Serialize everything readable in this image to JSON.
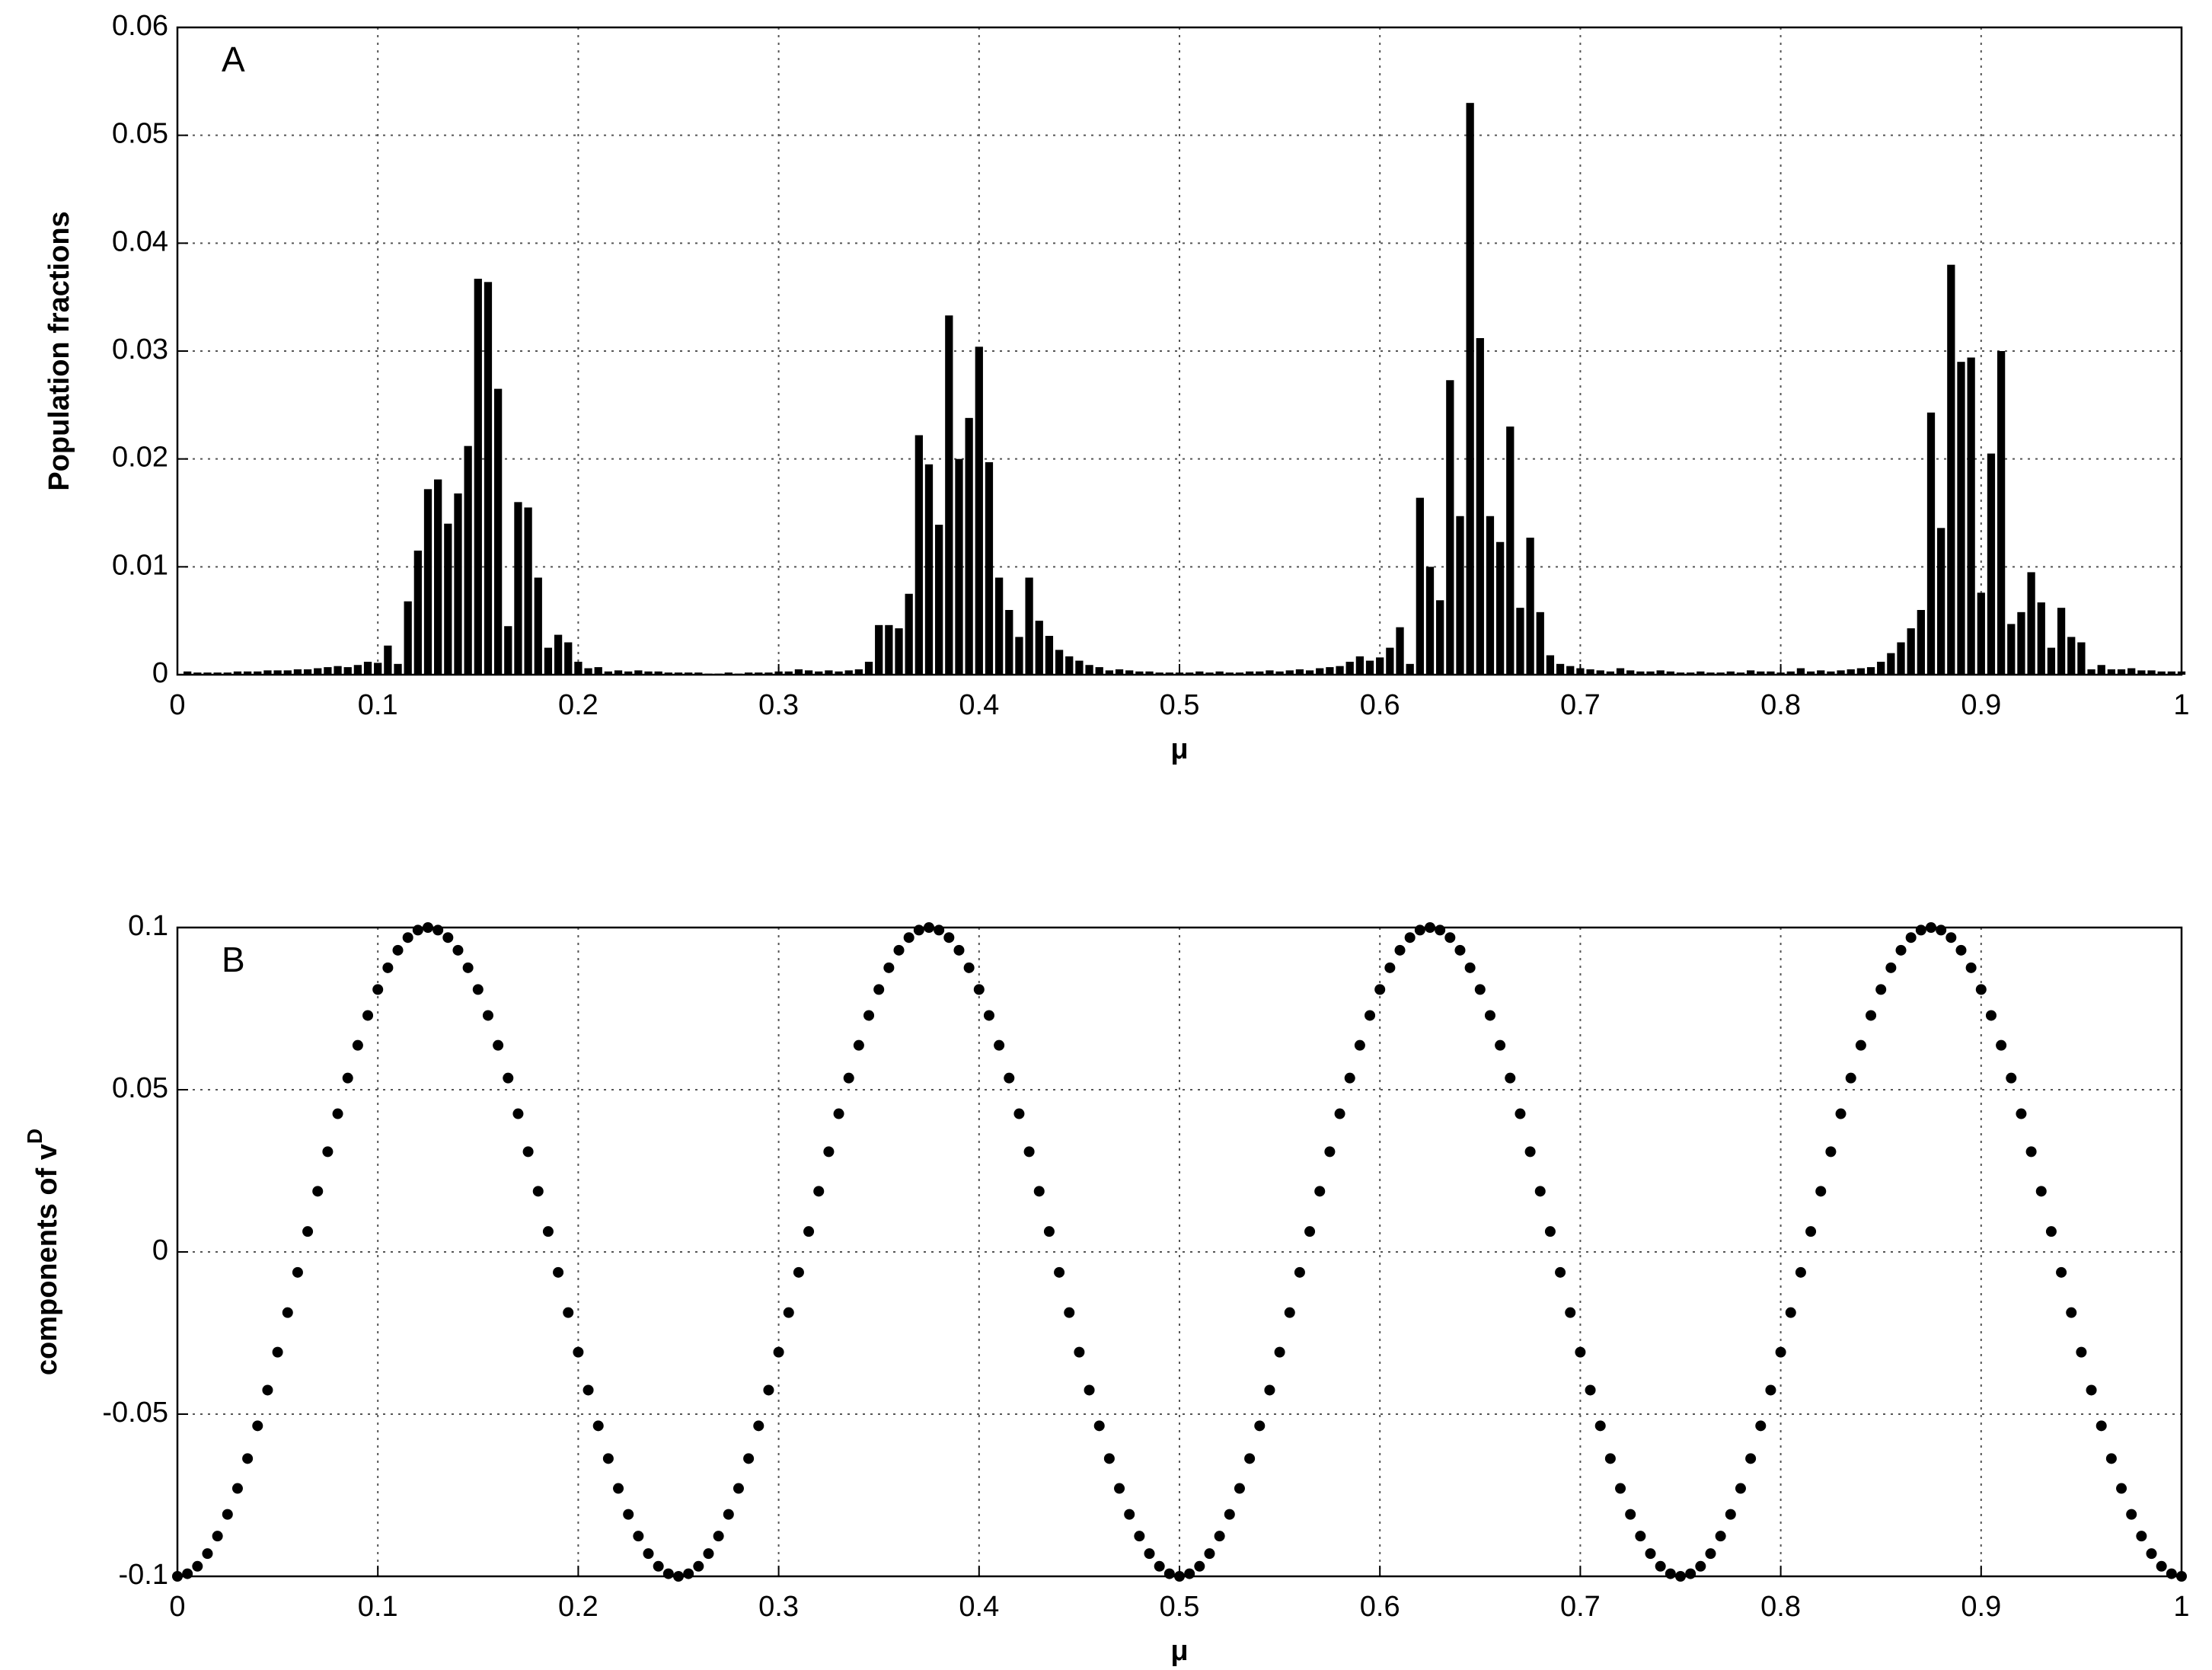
{
  "chart_data": [
    {
      "type": "bar",
      "panel_label": "A",
      "ylabel": "Population fractions",
      "xlabel": "μ",
      "color": "#000000",
      "grid": true,
      "xlim": [
        0,
        1
      ],
      "xticks": [
        0,
        0.1,
        0.2,
        0.3,
        0.4,
        0.5,
        0.6,
        0.7,
        0.8,
        0.9,
        1
      ],
      "ylim": [
        0,
        0.06
      ],
      "yticks": [
        0,
        0.01,
        0.02,
        0.03,
        0.04,
        0.05,
        0.06
      ],
      "x": [
        0.005,
        0.01,
        0.015,
        0.02,
        0.025,
        0.03,
        0.035,
        0.04,
        0.045,
        0.05,
        0.055,
        0.06,
        0.065,
        0.07,
        0.075,
        0.08,
        0.085,
        0.09,
        0.095,
        0.1,
        0.105,
        0.11,
        0.115,
        0.12,
        0.125,
        0.13,
        0.135,
        0.14,
        0.145,
        0.15,
        0.155,
        0.16,
        0.165,
        0.17,
        0.175,
        0.18,
        0.185,
        0.19,
        0.195,
        0.2,
        0.205,
        0.21,
        0.215,
        0.22,
        0.225,
        0.23,
        0.235,
        0.24,
        0.245,
        0.25,
        0.255,
        0.26,
        0.265,
        0.27,
        0.275,
        0.28,
        0.285,
        0.29,
        0.295,
        0.3,
        0.305,
        0.31,
        0.315,
        0.32,
        0.325,
        0.33,
        0.335,
        0.34,
        0.345,
        0.35,
        0.355,
        0.36,
        0.365,
        0.37,
        0.375,
        0.38,
        0.385,
        0.39,
        0.395,
        0.4,
        0.405,
        0.41,
        0.415,
        0.42,
        0.425,
        0.43,
        0.435,
        0.44,
        0.445,
        0.45,
        0.455,
        0.46,
        0.465,
        0.47,
        0.475,
        0.48,
        0.485,
        0.49,
        0.495,
        0.5,
        0.505,
        0.51,
        0.515,
        0.52,
        0.525,
        0.53,
        0.535,
        0.54,
        0.545,
        0.55,
        0.555,
        0.56,
        0.565,
        0.57,
        0.575,
        0.58,
        0.585,
        0.59,
        0.595,
        0.6,
        0.605,
        0.61,
        0.615,
        0.62,
        0.625,
        0.63,
        0.635,
        0.64,
        0.645,
        0.65,
        0.655,
        0.66,
        0.665,
        0.67,
        0.675,
        0.68,
        0.685,
        0.69,
        0.695,
        0.7,
        0.705,
        0.71,
        0.715,
        0.72,
        0.725,
        0.73,
        0.735,
        0.74,
        0.745,
        0.75,
        0.755,
        0.76,
        0.765,
        0.77,
        0.775,
        0.78,
        0.785,
        0.79,
        0.795,
        0.8,
        0.805,
        0.81,
        0.815,
        0.82,
        0.825,
        0.83,
        0.835,
        0.84,
        0.845,
        0.85,
        0.855,
        0.86,
        0.865,
        0.87,
        0.875,
        0.88,
        0.885,
        0.89,
        0.895,
        0.9,
        0.905,
        0.91,
        0.915,
        0.92,
        0.925,
        0.93,
        0.935,
        0.94,
        0.945,
        0.95,
        0.955,
        0.96,
        0.965,
        0.97,
        0.975,
        0.98,
        0.985,
        0.99,
        0.995,
        1
      ],
      "values": [
        0.0003,
        0.0002,
        0.0002,
        0.0002,
        0.0002,
        0.0003,
        0.0003,
        0.0003,
        0.0004,
        0.0004,
        0.0004,
        0.0005,
        0.0005,
        0.0006,
        0.0007,
        0.0008,
        0.0007,
        0.0009,
        0.0012,
        0.0011,
        0.0027,
        0.001,
        0.0068,
        0.0115,
        0.0172,
        0.0181,
        0.014,
        0.0168,
        0.0212,
        0.0367,
        0.0364,
        0.0265,
        0.0045,
        0.016,
        0.0155,
        0.009,
        0.0025,
        0.0037,
        0.003,
        0.0012,
        0.0006,
        0.0007,
        0.0003,
        0.0004,
        0.0003,
        0.0004,
        0.0003,
        0.0003,
        0.0002,
        0.0002,
        0.0002,
        0.0002,
        0.0001,
        0.0001,
        0.0002,
        0.0001,
        0.0002,
        0.0002,
        0.0002,
        0.0003,
        0.0003,
        0.0005,
        0.0004,
        0.0003,
        0.0004,
        0.0003,
        0.0004,
        0.0005,
        0.0012,
        0.0046,
        0.0046,
        0.0043,
        0.0075,
        0.0222,
        0.0195,
        0.0139,
        0.0333,
        0.02,
        0.0238,
        0.0304,
        0.0197,
        0.009,
        0.006,
        0.0035,
        0.009,
        0.005,
        0.0036,
        0.0023,
        0.0017,
        0.0013,
        0.0009,
        0.0007,
        0.0004,
        0.0005,
        0.0004,
        0.0003,
        0.0003,
        0.0002,
        0.0002,
        0.0002,
        0.0002,
        0.0003,
        0.0002,
        0.0003,
        0.0002,
        0.0002,
        0.0003,
        0.0003,
        0.0004,
        0.0003,
        0.0004,
        0.0005,
        0.0004,
        0.0006,
        0.0007,
        0.0008,
        0.0012,
        0.0017,
        0.0013,
        0.0016,
        0.0025,
        0.0044,
        0.001,
        0.0164,
        0.01,
        0.0069,
        0.0273,
        0.0147,
        0.053,
        0.0312,
        0.0147,
        0.0123,
        0.023,
        0.0062,
        0.0127,
        0.0058,
        0.0018,
        0.001,
        0.0008,
        0.0006,
        0.0005,
        0.0004,
        0.0003,
        0.0006,
        0.0004,
        0.0003,
        0.0003,
        0.0004,
        0.0003,
        0.0002,
        0.0002,
        0.0003,
        0.0002,
        0.0002,
        0.0003,
        0.0002,
        0.0004,
        0.0003,
        0.0003,
        0.0002,
        0.0003,
        0.0006,
        0.0003,
        0.0004,
        0.0003,
        0.0004,
        0.0005,
        0.0006,
        0.0007,
        0.0012,
        0.002,
        0.003,
        0.0043,
        0.006,
        0.0243,
        0.0136,
        0.038,
        0.029,
        0.0294,
        0.0076,
        0.0205,
        0.03,
        0.0047,
        0.0058,
        0.0095,
        0.0067,
        0.0025,
        0.0062,
        0.0035,
        0.003,
        0.0005,
        0.0009,
        0.0005,
        0.0005,
        0.0006,
        0.0004,
        0.0004,
        0.0003,
        0.0003,
        0.0003
      ]
    },
    {
      "type": "scatter",
      "panel_label": "B",
      "ylabel": "components of v",
      "ylabel_superscript": "D",
      "xlabel": "μ",
      "color": "#000000",
      "grid": true,
      "xlim": [
        0,
        1
      ],
      "xticks": [
        0,
        0.1,
        0.2,
        0.3,
        0.4,
        0.5,
        0.6,
        0.7,
        0.8,
        0.9,
        1
      ],
      "ylim": [
        -0.1,
        0.1
      ],
      "yticks": [
        -0.1,
        -0.05,
        0,
        0.05,
        0.1
      ],
      "x": [
        0,
        0.005,
        0.01,
        0.015,
        0.02,
        0.025,
        0.03,
        0.035,
        0.04,
        0.045,
        0.05,
        0.055,
        0.06,
        0.065,
        0.07,
        0.075,
        0.08,
        0.085,
        0.09,
        0.095,
        0.1,
        0.105,
        0.11,
        0.115,
        0.12,
        0.125,
        0.13,
        0.135,
        0.14,
        0.145,
        0.15,
        0.155,
        0.16,
        0.165,
        0.17,
        0.175,
        0.18,
        0.185,
        0.19,
        0.195,
        0.2,
        0.205,
        0.21,
        0.215,
        0.22,
        0.225,
        0.23,
        0.235,
        0.24,
        0.245,
        0.25,
        0.255,
        0.26,
        0.265,
        0.27,
        0.275,
        0.28,
        0.285,
        0.29,
        0.295,
        0.3,
        0.305,
        0.31,
        0.315,
        0.32,
        0.325,
        0.33,
        0.335,
        0.34,
        0.345,
        0.35,
        0.355,
        0.36,
        0.365,
        0.37,
        0.375,
        0.38,
        0.385,
        0.39,
        0.395,
        0.4,
        0.405,
        0.41,
        0.415,
        0.42,
        0.425,
        0.43,
        0.435,
        0.44,
        0.445,
        0.45,
        0.455,
        0.46,
        0.465,
        0.47,
        0.475,
        0.48,
        0.485,
        0.49,
        0.495,
        0.5,
        0.505,
        0.51,
        0.515,
        0.52,
        0.525,
        0.53,
        0.535,
        0.54,
        0.545,
        0.55,
        0.555,
        0.56,
        0.565,
        0.57,
        0.575,
        0.58,
        0.585,
        0.59,
        0.595,
        0.6,
        0.605,
        0.61,
        0.615,
        0.62,
        0.625,
        0.63,
        0.635,
        0.64,
        0.645,
        0.65,
        0.655,
        0.66,
        0.665,
        0.67,
        0.675,
        0.68,
        0.685,
        0.69,
        0.695,
        0.7,
        0.705,
        0.71,
        0.715,
        0.72,
        0.725,
        0.73,
        0.735,
        0.74,
        0.745,
        0.75,
        0.755,
        0.76,
        0.765,
        0.77,
        0.775,
        0.78,
        0.785,
        0.79,
        0.795,
        0.8,
        0.805,
        0.81,
        0.815,
        0.82,
        0.825,
        0.83,
        0.835,
        0.84,
        0.845,
        0.85,
        0.855,
        0.86,
        0.865,
        0.87,
        0.875,
        0.88,
        0.885,
        0.89,
        0.895,
        0.9,
        0.905,
        0.91,
        0.915,
        0.92,
        0.925,
        0.93,
        0.935,
        0.94,
        0.945,
        0.95,
        0.955,
        0.96,
        0.965,
        0.97,
        0.975,
        0.98,
        0.985,
        0.99,
        0.995,
        1
      ],
      "values": [
        -0.1,
        -0.0992,
        -0.0969,
        -0.093,
        -0.0876,
        -0.0809,
        -0.0729,
        -0.0637,
        -0.0536,
        -0.0426,
        -0.0309,
        -0.0187,
        -0.0063,
        0.0063,
        0.0187,
        0.0309,
        0.0426,
        0.0536,
        0.0637,
        0.0729,
        0.0809,
        0.0876,
        0.093,
        0.0969,
        0.0992,
        0.1,
        0.0992,
        0.0969,
        0.093,
        0.0876,
        0.0809,
        0.0729,
        0.0637,
        0.0536,
        0.0426,
        0.0309,
        0.0187,
        0.0063,
        -0.0063,
        -0.0187,
        -0.0309,
        -0.0426,
        -0.0536,
        -0.0637,
        -0.0729,
        -0.0809,
        -0.0876,
        -0.093,
        -0.0969,
        -0.0992,
        -0.1,
        -0.0992,
        -0.0969,
        -0.093,
        -0.0876,
        -0.0809,
        -0.0729,
        -0.0637,
        -0.0536,
        -0.0426,
        -0.0309,
        -0.0187,
        -0.0063,
        0.0063,
        0.0187,
        0.0309,
        0.0426,
        0.0536,
        0.0637,
        0.0729,
        0.0809,
        0.0876,
        0.093,
        0.0969,
        0.0992,
        0.1,
        0.0992,
        0.0969,
        0.093,
        0.0876,
        0.0809,
        0.0729,
        0.0637,
        0.0536,
        0.0426,
        0.0309,
        0.0187,
        0.0063,
        -0.0063,
        -0.0187,
        -0.0309,
        -0.0426,
        -0.0536,
        -0.0637,
        -0.0729,
        -0.0809,
        -0.0876,
        -0.093,
        -0.0969,
        -0.0992,
        -0.1,
        -0.0992,
        -0.0969,
        -0.093,
        -0.0876,
        -0.0809,
        -0.0729,
        -0.0637,
        -0.0536,
        -0.0426,
        -0.0309,
        -0.0187,
        -0.0063,
        0.0063,
        0.0187,
        0.0309,
        0.0426,
        0.0536,
        0.0637,
        0.0729,
        0.0809,
        0.0876,
        0.093,
        0.0969,
        0.0992,
        0.1,
        0.0992,
        0.0969,
        0.093,
        0.0876,
        0.0809,
        0.0729,
        0.0637,
        0.0536,
        0.0426,
        0.0309,
        0.0187,
        0.0063,
        -0.0063,
        -0.0187,
        -0.0309,
        -0.0426,
        -0.0536,
        -0.0637,
        -0.0729,
        -0.0809,
        -0.0876,
        -0.093,
        -0.0969,
        -0.0992,
        -0.1,
        -0.0992,
        -0.0969,
        -0.093,
        -0.0876,
        -0.0809,
        -0.0729,
        -0.0637,
        -0.0536,
        -0.0426,
        -0.0309,
        -0.0187,
        -0.0063,
        0.0063,
        0.0187,
        0.0309,
        0.0426,
        0.0536,
        0.0637,
        0.0729,
        0.0809,
        0.0876,
        0.093,
        0.0969,
        0.0992,
        0.1,
        0.0992,
        0.0969,
        0.093,
        0.0876,
        0.0809,
        0.0729,
        0.0637,
        0.0536,
        0.0426,
        0.0309,
        0.0187,
        0.0063,
        -0.0063,
        -0.0187,
        -0.0309,
        -0.0426,
        -0.0536,
        -0.0637,
        -0.0729,
        -0.0809,
        -0.0876,
        -0.093,
        -0.0969,
        -0.0992,
        -0.1
      ]
    }
  ]
}
